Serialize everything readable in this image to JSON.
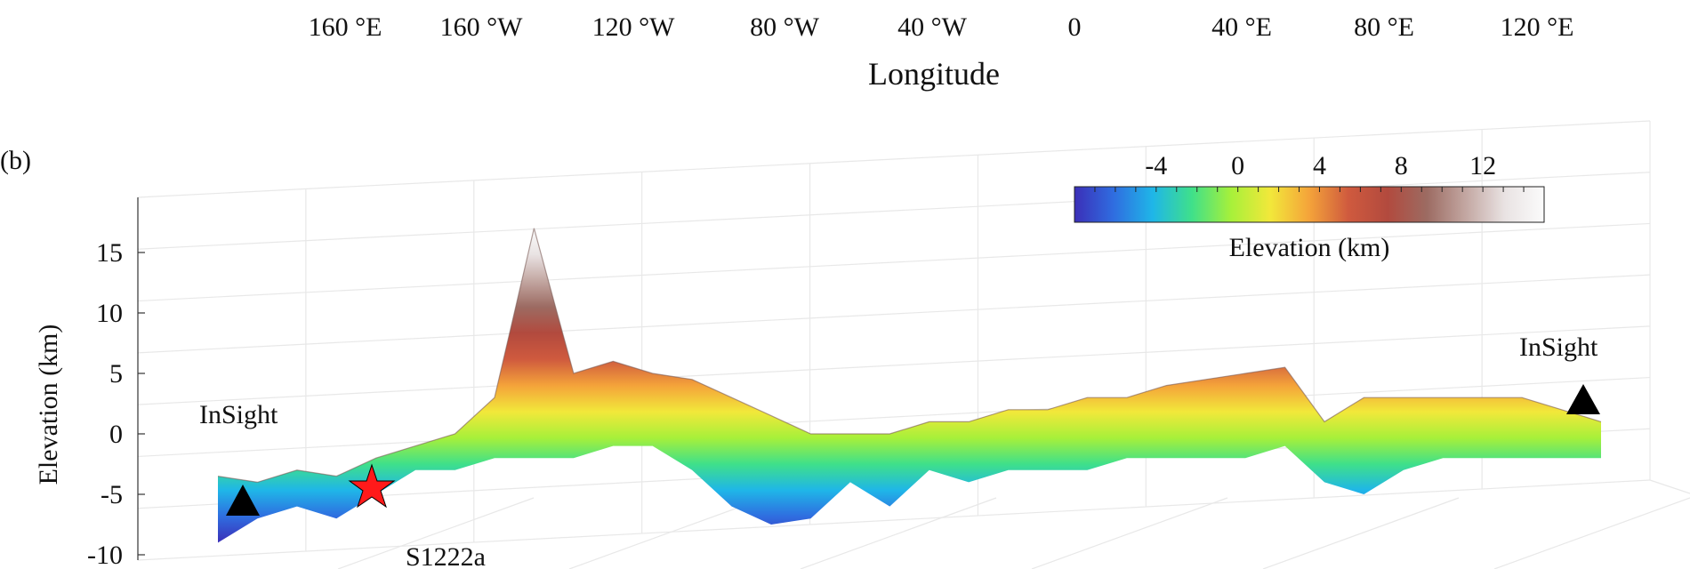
{
  "figure": {
    "panel_label": "(b)",
    "stations": {
      "left": "InSight",
      "right": "InSight"
    },
    "event_label": "S1222a"
  },
  "colors": {
    "colormap": [
      "#3b2fb8",
      "#2f6de0",
      "#1fb6e8",
      "#3fe08a",
      "#a7f03a",
      "#f2e83a",
      "#f4a33a",
      "#cf5a3e",
      "#b24a3e",
      "#9c6b62",
      "#c3a7a2",
      "#e9e3e3",
      "#fbfbfb"
    ],
    "station_marker": "#000000",
    "event_marker": "#ff1a1a",
    "grid": "#e8e8e8"
  },
  "chart_data": {
    "type": "area",
    "xlabel": "Longitude",
    "x_ticks": [
      "160 °E",
      "160 °W",
      "120 °W",
      "80 °W",
      "40 °W",
      "0",
      "40 °E",
      "80 °E",
      "120 °E"
    ],
    "ylabel": "Elevation (km)",
    "y_ticks": [
      "15",
      "10",
      "5",
      "0",
      "-5",
      "-10"
    ],
    "ylim": [
      -10,
      18
    ],
    "colorbar": {
      "label": "Elevation (km)",
      "ticks": [
        "-4",
        "0",
        "4",
        "8",
        "12"
      ],
      "range": [
        -8,
        15
      ]
    },
    "x": [
      "160E",
      "170E",
      "180",
      "170W",
      "160W",
      "150W",
      "140W",
      "130W",
      "125W",
      "120W",
      "110W",
      "100W",
      "90W",
      "80W",
      "70W",
      "60W",
      "50W",
      "40W",
      "30W",
      "20W",
      "10W",
      "0",
      "10E",
      "20E",
      "30E",
      "40E",
      "50E",
      "60E",
      "70E",
      "80E",
      "90E",
      "100E",
      "110E",
      "120E",
      "130E",
      "135E"
    ],
    "series": [
      {
        "values": [
          -3.5,
          -4,
          -3,
          -3.5,
          -2,
          -1,
          0,
          3,
          17,
          5,
          6,
          5,
          4.5,
          3,
          1.5,
          0,
          0,
          0,
          1,
          1,
          2,
          2,
          3,
          3,
          4,
          4.5,
          5,
          5.5,
          1,
          3,
          3,
          3,
          3,
          3,
          2,
          1
        ]
      },
      {
        "values": [
          -9,
          -7,
          -6,
          -7,
          -5,
          -3,
          -3,
          -2,
          -2,
          -2,
          -1,
          -1,
          -3,
          -6,
          -7.5,
          -7,
          -4,
          -6,
          -3,
          -4,
          -3,
          -3,
          -3,
          -2,
          -2,
          -2,
          -2,
          -1,
          -4,
          -5,
          -3,
          -2,
          -2,
          -2,
          -2,
          -2
        ]
      }
    ]
  }
}
